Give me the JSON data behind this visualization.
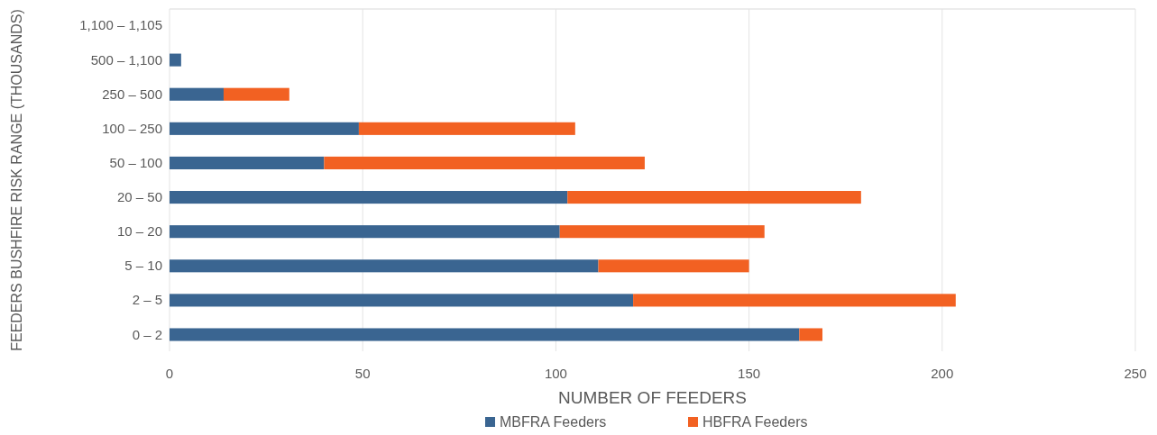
{
  "chart_data": {
    "type": "bar",
    "orientation": "horizontal",
    "stacked": true,
    "categories": [
      "1,100 – 1,105",
      "500 – 1,100",
      "250 – 500",
      "100 – 250",
      "50 – 100",
      "20 – 50",
      "10 – 20",
      "5 – 10",
      "2 – 5",
      "0 – 2"
    ],
    "series": [
      {
        "name": "MBFRA Feeders",
        "color": "#3a6591",
        "values": [
          0,
          3,
          14,
          49,
          40,
          103,
          101,
          111,
          120,
          163
        ]
      },
      {
        "name": "HBFRA Feeders",
        "color": "#f26122",
        "values": [
          0,
          0,
          17,
          56,
          83,
          76,
          53,
          39,
          83.5,
          6
        ]
      }
    ],
    "xlim": [
      0,
      250
    ],
    "xticks": [
      0,
      50,
      100,
      150,
      200,
      250
    ],
    "xlabel": "NUMBER OF FEEDERS",
    "ylabel": "FEEDERS BUSHFIRE RISK RANGE (THOUSANDS)",
    "grid": "x",
    "legend": "bottom"
  }
}
